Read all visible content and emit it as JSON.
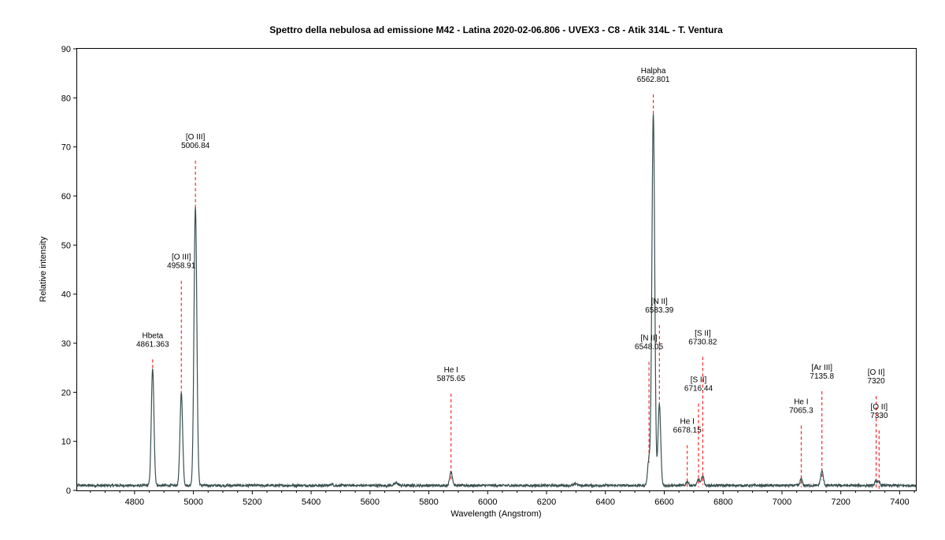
{
  "chart_data": {
    "type": "line",
    "title": "Spettro della nebulosa ad emissione M42 - Latina 2020-02-06.806 - UVEX3 - C8 - Atik 314L - T. Ventura",
    "xlabel": "Wavelength (Angstrom)",
    "ylabel": "Relative intensity",
    "xlim": [
      4605,
      7455
    ],
    "ylim": [
      0,
      90
    ],
    "x_ticks": [
      4800,
      5000,
      5200,
      5400,
      5600,
      5800,
      6000,
      6200,
      6400,
      6600,
      6800,
      7000,
      7200,
      7400
    ],
    "y_ticks": [
      0,
      10,
      20,
      30,
      40,
      50,
      60,
      70,
      80,
      90
    ],
    "grid": false,
    "legend": "none",
    "series_color": "#3a5050",
    "marker_color": "#ff0000",
    "baseline": 1.0,
    "peaks": [
      {
        "x": 4861.4,
        "y": 24.8,
        "w": 4.5
      },
      {
        "x": 4958.9,
        "y": 19.9,
        "w": 4.5
      },
      {
        "x": 5006.8,
        "y": 58.0,
        "w": 4.8
      },
      {
        "x": 5875.6,
        "y": 3.9,
        "w": 4.5
      },
      {
        "x": 6548.1,
        "y": 6.4,
        "w": 4.5
      },
      {
        "x": 6562.8,
        "y": 76.9,
        "w": 4.8
      },
      {
        "x": 6583.4,
        "y": 17.6,
        "w": 4.5
      },
      {
        "x": 6678.2,
        "y": 1.8,
        "w": 4.0
      },
      {
        "x": 6716.4,
        "y": 2.3,
        "w": 4.0
      },
      {
        "x": 6730.8,
        "y": 3.0,
        "w": 4.0
      },
      {
        "x": 7065.3,
        "y": 2.3,
        "w": 4.0
      },
      {
        "x": 7135.8,
        "y": 3.9,
        "w": 4.5
      },
      {
        "x": 7320.0,
        "y": 2.0,
        "w": 4.0
      },
      {
        "x": 7330.0,
        "y": 1.6,
        "w": 4.0
      },
      {
        "x": 5690.0,
        "y": 1.5,
        "w": 6.0
      },
      {
        "x": 5470.0,
        "y": 1.3,
        "w": 4.0
      },
      {
        "x": 6300.0,
        "y": 1.4,
        "w": 5.0
      }
    ],
    "lines": [
      {
        "name": "Hbeta",
        "wavelength": "4861.363",
        "x": 4861.4,
        "y_top": 28.0,
        "y_bottom": 28.0
      },
      {
        "name": "[O III]",
        "wavelength": "4958.91",
        "x": 4958.9,
        "y_top": 44.0,
        "y_bottom": 23.5
      },
      {
        "name": "[O III]",
        "wavelength": "5006.84",
        "x": 5006.8,
        "y_top": 68.5,
        "y_bottom": 61.5
      },
      {
        "name": "He I",
        "wavelength": "5875.65",
        "x": 5875.6,
        "y_top": 21.0,
        "y_bottom": 6.0
      },
      {
        "name": "[N II]",
        "wavelength": "6548.05",
        "x": 6548.1,
        "y_top": 27.5,
        "y_bottom": 9.5
      },
      {
        "name": "Halpha",
        "wavelength": "6562.801",
        "x": 6562.8,
        "y_top": 82.0,
        "y_bottom": 80.0
      },
      {
        "name": "[N II]",
        "wavelength": "6583.39",
        "x": 6583.4,
        "y_top": 35.0,
        "y_bottom": 21.0
      },
      {
        "name": "He I",
        "wavelength": "6678.15",
        "x": 6678.2,
        "y_top": 10.5,
        "y_bottom": 4.0
      },
      {
        "name": "[S II]",
        "wavelength": "6716.44",
        "x": 6716.4,
        "y_top": 19.0,
        "y_bottom": 4.5
      },
      {
        "name": "[S II]",
        "wavelength": "6730.82",
        "x": 6730.8,
        "y_top": 28.5,
        "y_bottom": 5.0
      },
      {
        "name": "He I",
        "wavelength": "7065.3",
        "x": 7065.3,
        "y_top": 14.5,
        "y_bottom": 4.5
      },
      {
        "name": "[Ar III]",
        "wavelength": "7135.8",
        "x": 7135.8,
        "y_top": 21.5,
        "y_bottom": 6.0
      },
      {
        "name": "[O II]",
        "wavelength": "7320",
        "x": 7320.0,
        "y_top": 20.5,
        "y_bottom": 4.0
      },
      {
        "name": "[O II]",
        "wavelength": "7330",
        "x": 7330.0,
        "y_top": 13.5,
        "y_bottom": 4.0
      }
    ]
  }
}
